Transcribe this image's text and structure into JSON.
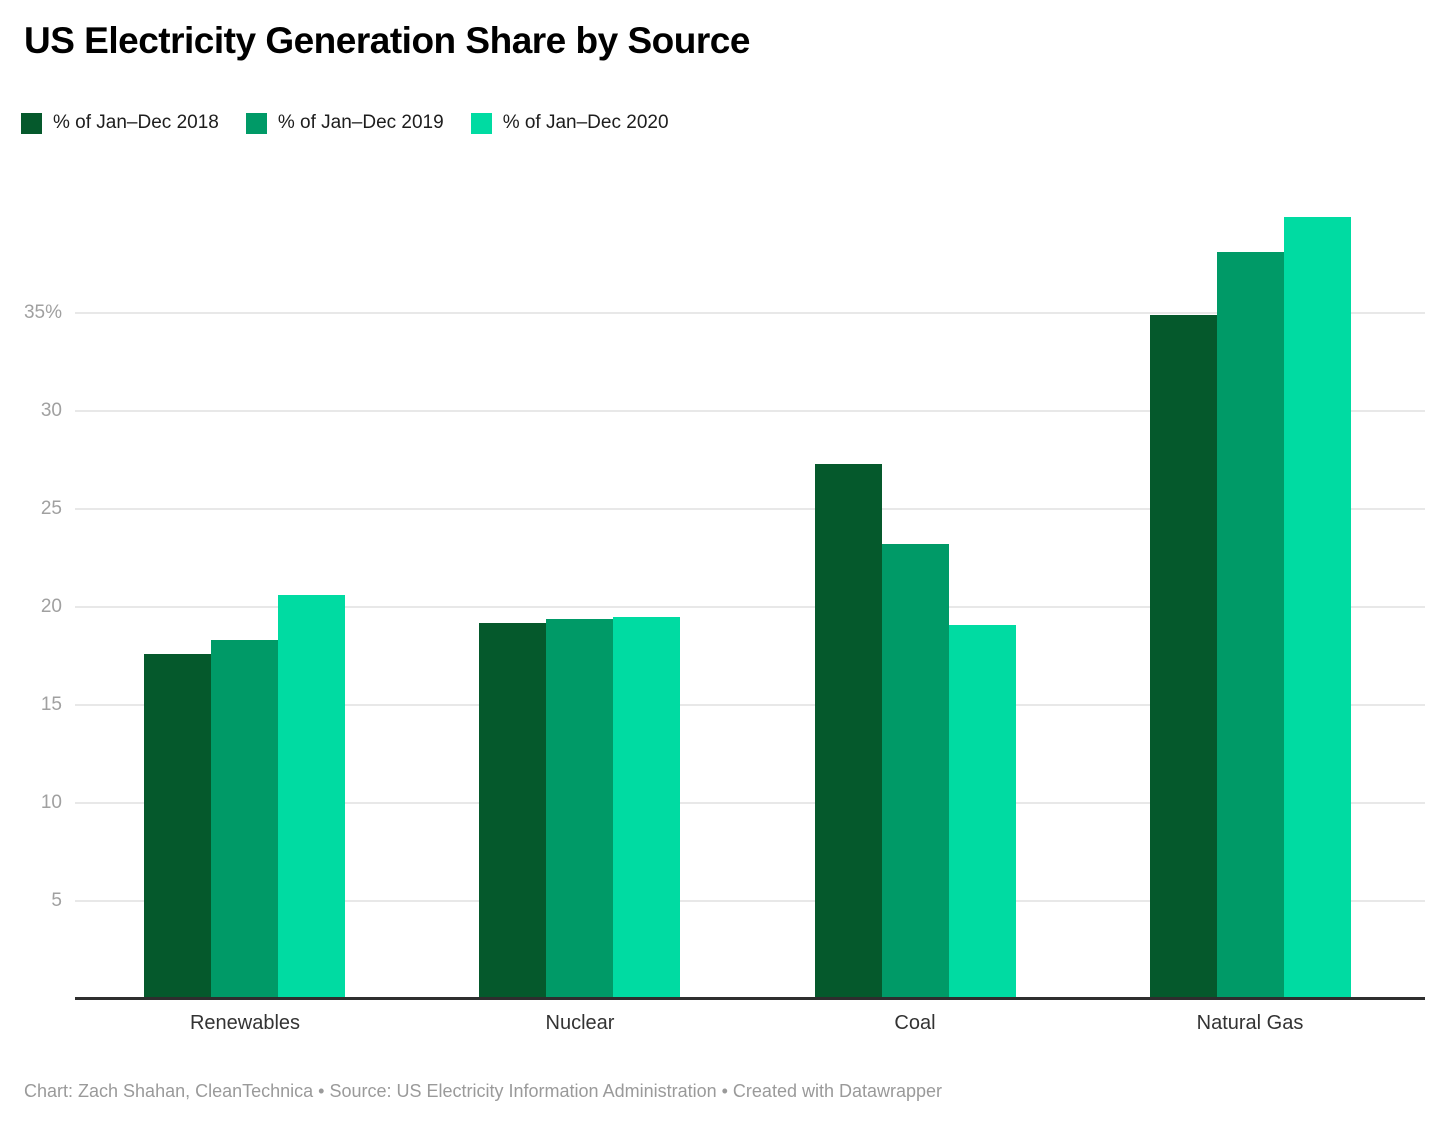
{
  "title": "US Electricity Generation Share by Source",
  "footer": {
    "text": "Chart: Zach Shahan, CleanTechnica • Source: US Electricity Information Administration • Created with Datawrapper"
  },
  "chart_data": {
    "type": "bar",
    "title": "US Electricity Generation Share by Source",
    "categories": [
      "Renewables",
      "Nuclear",
      "Coal",
      "Natural Gas"
    ],
    "series": [
      {
        "name": "% of Jan–Dec 2018",
        "color": "#05592c",
        "values": [
          17.6,
          19.2,
          27.3,
          34.9
        ]
      },
      {
        "name": "% of Jan–Dec 2019",
        "color": "#009a67",
        "values": [
          18.3,
          19.4,
          23.2,
          38.1
        ]
      },
      {
        "name": "% of Jan–Dec 2020",
        "color": "#00dba2",
        "values": [
          20.6,
          19.5,
          19.1,
          39.9
        ]
      }
    ],
    "xlabel": "",
    "ylabel": "",
    "unit": "%",
    "ylim": [
      0,
      41.3
    ],
    "yticks": [
      {
        "value": 5,
        "label": "5"
      },
      {
        "value": 10,
        "label": "10"
      },
      {
        "value": 15,
        "label": "15"
      },
      {
        "value": 20,
        "label": "20"
      },
      {
        "value": 25,
        "label": "25"
      },
      {
        "value": 30,
        "label": "30"
      },
      {
        "value": 35,
        "label": "35%"
      }
    ],
    "grid": true,
    "legend_position": "top-left",
    "colors": {
      "grid": "#e8e8e8",
      "axis": "#2e2e2e",
      "tick_text": "#a0a0a0",
      "category_text": "#333333",
      "footer_text": "#9a9a9a"
    }
  }
}
